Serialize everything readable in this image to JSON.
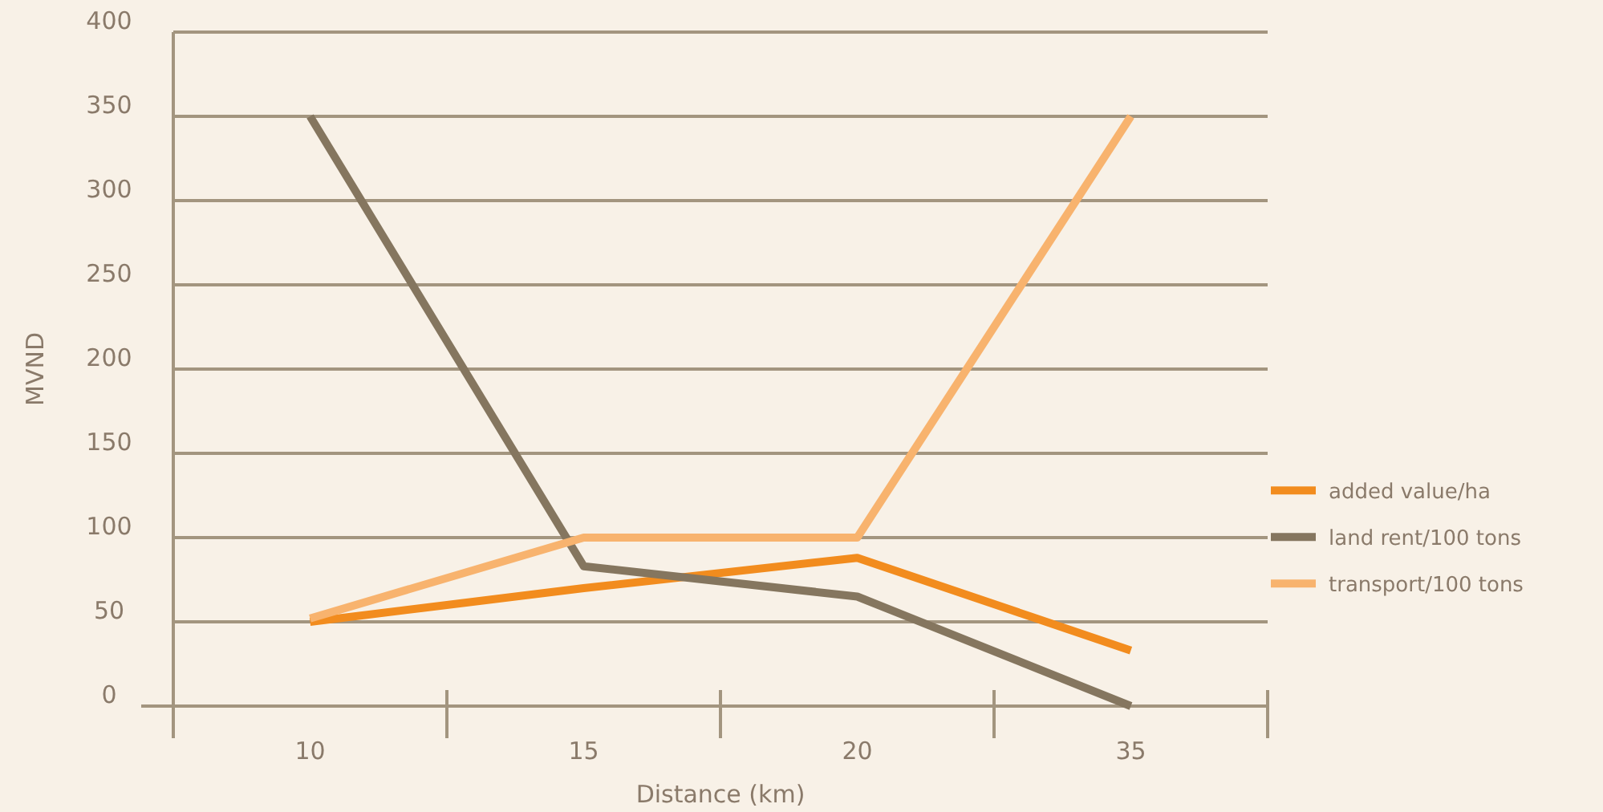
{
  "chart_data": {
    "type": "line",
    "xlabel": "Distance (km)",
    "ylabel": "MVND",
    "categories": [
      "10",
      "15",
      "20",
      "35"
    ],
    "ylim": [
      0,
      400
    ],
    "yticks": [
      0,
      50,
      100,
      150,
      200,
      250,
      300,
      350,
      400
    ],
    "grid": "y",
    "legend": "right",
    "marker": "none",
    "line_style": "solid",
    "series": [
      {
        "name": "added value/ha",
        "color": "#f28c1e",
        "values": [
          50,
          70,
          88,
          33
        ]
      },
      {
        "name": "land rent/100 tons",
        "color": "#85765f",
        "values": [
          350,
          83,
          65,
          0
        ]
      },
      {
        "name": "transport/100 tons",
        "color": "#f8b36e",
        "values": [
          52,
          100,
          100,
          350
        ]
      }
    ]
  }
}
